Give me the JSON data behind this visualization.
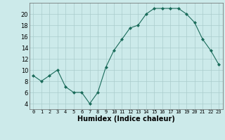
{
  "x": [
    0,
    1,
    2,
    3,
    4,
    5,
    6,
    7,
    8,
    9,
    10,
    11,
    12,
    13,
    14,
    15,
    16,
    17,
    18,
    19,
    20,
    21,
    22,
    23
  ],
  "y": [
    9,
    8,
    9,
    10,
    7,
    6,
    6,
    4,
    6,
    10.5,
    13.5,
    15.5,
    17.5,
    18,
    20,
    21,
    21,
    21,
    21,
    20,
    18.5,
    15.5,
    13.5,
    11
  ],
  "line_color": "#1a6b5a",
  "marker": "D",
  "marker_size": 2,
  "bg_color": "#cceaea",
  "grid_color": "#aacccc",
  "xlabel": "Humidex (Indice chaleur)",
  "ylim": [
    3,
    22
  ],
  "xlim": [
    -0.5,
    23.5
  ],
  "yticks": [
    4,
    6,
    8,
    10,
    12,
    14,
    16,
    18,
    20
  ],
  "xtick_labels": [
    "0",
    "1",
    "2",
    "3",
    "4",
    "5",
    "6",
    "7",
    "8",
    "9",
    "10",
    "11",
    "12",
    "13",
    "14",
    "15",
    "16",
    "17",
    "18",
    "19",
    "20",
    "21",
    "22",
    "23"
  ],
  "xlabel_fontsize": 7,
  "ytick_fontsize": 6,
  "xtick_fontsize": 5
}
